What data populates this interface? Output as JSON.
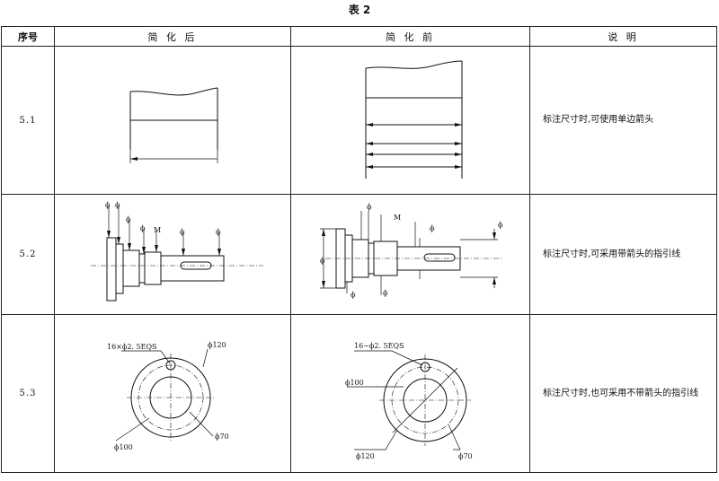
{
  "title": "表 2",
  "headers": {
    "no": "序号",
    "after": "简 化 后",
    "before": "简 化 前",
    "note": "说 明"
  },
  "rows": [
    {
      "no": "5.1",
      "note": "标注尺寸时,可使用单边箭头"
    },
    {
      "no": "5.2",
      "note": "标注尺寸时,可采用带箭头的指引线"
    },
    {
      "no": "5.3",
      "note": "标注尺寸时,也可采用不带箭头的指引线"
    }
  ],
  "labels": {
    "phi": "ϕ",
    "m": "M",
    "after_holes": "16×ϕ2. 5EQS",
    "before_holes": "16−ϕ2. 5EQS",
    "d120": "ϕ120",
    "d100": "ϕ100",
    "d70": "ϕ70"
  }
}
